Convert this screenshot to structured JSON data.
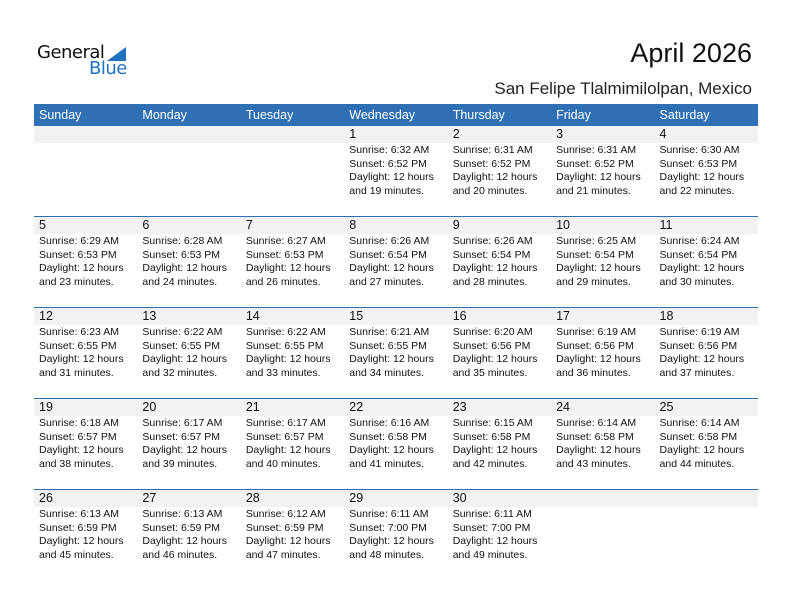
{
  "logo": {
    "general": "General",
    "blue": "Blue"
  },
  "title": "April 2026",
  "location": "San Felipe Tlalmimilolpan, Mexico",
  "colors": {
    "header": "#2e70b3",
    "band": "#f2f2f2",
    "brand": "#1f73c1"
  },
  "weekdays": [
    "Sunday",
    "Monday",
    "Tuesday",
    "Wednesday",
    "Thursday",
    "Friday",
    "Saturday"
  ],
  "weeks": [
    [
      null,
      null,
      null,
      {
        "day": "1",
        "sunrise": "Sunrise: 6:32 AM",
        "sunset": "Sunset: 6:52 PM",
        "daylight": "Daylight: 12 hours",
        "minutes": "and 19 minutes."
      },
      {
        "day": "2",
        "sunrise": "Sunrise: 6:31 AM",
        "sunset": "Sunset: 6:52 PM",
        "daylight": "Daylight: 12 hours",
        "minutes": "and 20 minutes."
      },
      {
        "day": "3",
        "sunrise": "Sunrise: 6:31 AM",
        "sunset": "Sunset: 6:52 PM",
        "daylight": "Daylight: 12 hours",
        "minutes": "and 21 minutes."
      },
      {
        "day": "4",
        "sunrise": "Sunrise: 6:30 AM",
        "sunset": "Sunset: 6:53 PM",
        "daylight": "Daylight: 12 hours",
        "minutes": "and 22 minutes."
      }
    ],
    [
      {
        "day": "5",
        "sunrise": "Sunrise: 6:29 AM",
        "sunset": "Sunset: 6:53 PM",
        "daylight": "Daylight: 12 hours",
        "minutes": "and 23 minutes."
      },
      {
        "day": "6",
        "sunrise": "Sunrise: 6:28 AM",
        "sunset": "Sunset: 6:53 PM",
        "daylight": "Daylight: 12 hours",
        "minutes": "and 24 minutes."
      },
      {
        "day": "7",
        "sunrise": "Sunrise: 6:27 AM",
        "sunset": "Sunset: 6:53 PM",
        "daylight": "Daylight: 12 hours",
        "minutes": "and 26 minutes."
      },
      {
        "day": "8",
        "sunrise": "Sunrise: 6:26 AM",
        "sunset": "Sunset: 6:54 PM",
        "daylight": "Daylight: 12 hours",
        "minutes": "and 27 minutes."
      },
      {
        "day": "9",
        "sunrise": "Sunrise: 6:26 AM",
        "sunset": "Sunset: 6:54 PM",
        "daylight": "Daylight: 12 hours",
        "minutes": "and 28 minutes."
      },
      {
        "day": "10",
        "sunrise": "Sunrise: 6:25 AM",
        "sunset": "Sunset: 6:54 PM",
        "daylight": "Daylight: 12 hours",
        "minutes": "and 29 minutes."
      },
      {
        "day": "11",
        "sunrise": "Sunrise: 6:24 AM",
        "sunset": "Sunset: 6:54 PM",
        "daylight": "Daylight: 12 hours",
        "minutes": "and 30 minutes."
      }
    ],
    [
      {
        "day": "12",
        "sunrise": "Sunrise: 6:23 AM",
        "sunset": "Sunset: 6:55 PM",
        "daylight": "Daylight: 12 hours",
        "minutes": "and 31 minutes."
      },
      {
        "day": "13",
        "sunrise": "Sunrise: 6:22 AM",
        "sunset": "Sunset: 6:55 PM",
        "daylight": "Daylight: 12 hours",
        "minutes": "and 32 minutes."
      },
      {
        "day": "14",
        "sunrise": "Sunrise: 6:22 AM",
        "sunset": "Sunset: 6:55 PM",
        "daylight": "Daylight: 12 hours",
        "minutes": "and 33 minutes."
      },
      {
        "day": "15",
        "sunrise": "Sunrise: 6:21 AM",
        "sunset": "Sunset: 6:55 PM",
        "daylight": "Daylight: 12 hours",
        "minutes": "and 34 minutes."
      },
      {
        "day": "16",
        "sunrise": "Sunrise: 6:20 AM",
        "sunset": "Sunset: 6:56 PM",
        "daylight": "Daylight: 12 hours",
        "minutes": "and 35 minutes."
      },
      {
        "day": "17",
        "sunrise": "Sunrise: 6:19 AM",
        "sunset": "Sunset: 6:56 PM",
        "daylight": "Daylight: 12 hours",
        "minutes": "and 36 minutes."
      },
      {
        "day": "18",
        "sunrise": "Sunrise: 6:19 AM",
        "sunset": "Sunset: 6:56 PM",
        "daylight": "Daylight: 12 hours",
        "minutes": "and 37 minutes."
      }
    ],
    [
      {
        "day": "19",
        "sunrise": "Sunrise: 6:18 AM",
        "sunset": "Sunset: 6:57 PM",
        "daylight": "Daylight: 12 hours",
        "minutes": "and 38 minutes."
      },
      {
        "day": "20",
        "sunrise": "Sunrise: 6:17 AM",
        "sunset": "Sunset: 6:57 PM",
        "daylight": "Daylight: 12 hours",
        "minutes": "and 39 minutes."
      },
      {
        "day": "21",
        "sunrise": "Sunrise: 6:17 AM",
        "sunset": "Sunset: 6:57 PM",
        "daylight": "Daylight: 12 hours",
        "minutes": "and 40 minutes."
      },
      {
        "day": "22",
        "sunrise": "Sunrise: 6:16 AM",
        "sunset": "Sunset: 6:58 PM",
        "daylight": "Daylight: 12 hours",
        "minutes": "and 41 minutes."
      },
      {
        "day": "23",
        "sunrise": "Sunrise: 6:15 AM",
        "sunset": "Sunset: 6:58 PM",
        "daylight": "Daylight: 12 hours",
        "minutes": "and 42 minutes."
      },
      {
        "day": "24",
        "sunrise": "Sunrise: 6:14 AM",
        "sunset": "Sunset: 6:58 PM",
        "daylight": "Daylight: 12 hours",
        "minutes": "and 43 minutes."
      },
      {
        "day": "25",
        "sunrise": "Sunrise: 6:14 AM",
        "sunset": "Sunset: 6:58 PM",
        "daylight": "Daylight: 12 hours",
        "minutes": "and 44 minutes."
      }
    ],
    [
      {
        "day": "26",
        "sunrise": "Sunrise: 6:13 AM",
        "sunset": "Sunset: 6:59 PM",
        "daylight": "Daylight: 12 hours",
        "minutes": "and 45 minutes."
      },
      {
        "day": "27",
        "sunrise": "Sunrise: 6:13 AM",
        "sunset": "Sunset: 6:59 PM",
        "daylight": "Daylight: 12 hours",
        "minutes": "and 46 minutes."
      },
      {
        "day": "28",
        "sunrise": "Sunrise: 6:12 AM",
        "sunset": "Sunset: 6:59 PM",
        "daylight": "Daylight: 12 hours",
        "minutes": "and 47 minutes."
      },
      {
        "day": "29",
        "sunrise": "Sunrise: 6:11 AM",
        "sunset": "Sunset: 7:00 PM",
        "daylight": "Daylight: 12 hours",
        "minutes": "and 48 minutes."
      },
      {
        "day": "30",
        "sunrise": "Sunrise: 6:11 AM",
        "sunset": "Sunset: 7:00 PM",
        "daylight": "Daylight: 12 hours",
        "minutes": "and 49 minutes."
      },
      null,
      null
    ]
  ]
}
